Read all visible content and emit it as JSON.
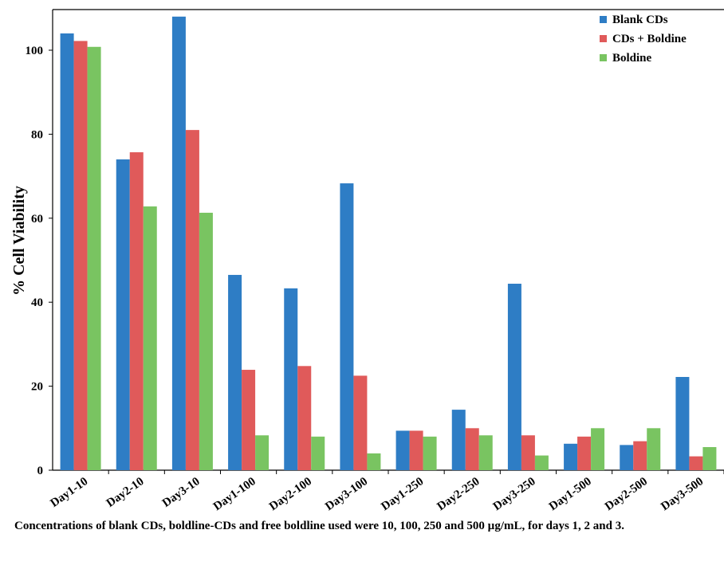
{
  "chart_data": {
    "type": "bar",
    "title": "",
    "xlabel": "",
    "ylabel": "% Cell Viability",
    "ylim": [
      0,
      110
    ],
    "yticks": [
      0,
      20,
      40,
      60,
      80,
      100
    ],
    "grid": false,
    "legend_position": "top-right",
    "categories": [
      "Day1-10",
      "Day2-10",
      "Day3-10",
      "Day1-100",
      "Day2-100",
      "Day3-100",
      "Day1-250",
      "Day2-250",
      "Day3-250",
      "Day1-500",
      "Day2-500",
      "Day3-500"
    ],
    "series": [
      {
        "name": "Blank CDs",
        "color": "#2e7dc5",
        "values": [
          104,
          74,
          108,
          46.5,
          43.3,
          68.3,
          9.4,
          14.4,
          44.4,
          6.3,
          6.0,
          22.2
        ]
      },
      {
        "name": "CDs + Boldine",
        "color": "#e05a5a",
        "values": [
          102.2,
          75.7,
          81,
          23.9,
          24.8,
          22.5,
          9.4,
          10.0,
          8.3,
          8.0,
          6.9,
          3.3
        ]
      },
      {
        "name": "Boldine",
        "color": "#79c461",
        "values": [
          100.8,
          62.8,
          61.3,
          8.3,
          8.0,
          4.0,
          8.0,
          8.3,
          3.5,
          10.0,
          10.0,
          5.5
        ]
      }
    ]
  },
  "caption": "Concentrations of blank CDs, boldline-CDs and free boldline used were 10, 100, 250 and 500 µg/mL, for days 1, 2 and 3."
}
